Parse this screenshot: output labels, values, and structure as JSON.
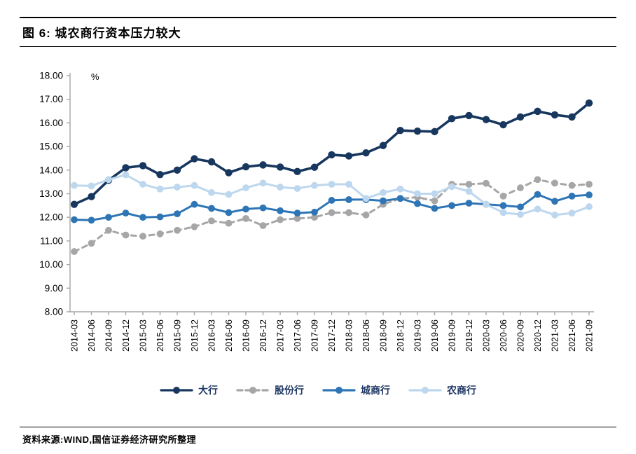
{
  "header": {
    "title": "图 6: 城农商行资本压力较大"
  },
  "footer": {
    "source": "资料来源:WIND,国信证券经济研究所整理"
  },
  "chart_data": {
    "type": "line",
    "title": "城农商行资本压力较大",
    "unit_label": "%",
    "xlabel": "",
    "ylabel": "%",
    "ylim": [
      8,
      18
    ],
    "ytick_step": 1.0,
    "ytick_format": "0.00",
    "grid": false,
    "legend_position": "bottom",
    "axis_color": "#a6a6a6",
    "tick_label_color": "#000000",
    "categories": [
      "2014-03",
      "2014-06",
      "2014-09",
      "2014-12",
      "2015-03",
      "2015-06",
      "2015-09",
      "2015-12",
      "2016-03",
      "2016-06",
      "2016-09",
      "2016-12",
      "2017-03",
      "2017-06",
      "2017-09",
      "2017-12",
      "2018-03",
      "2018-06",
      "2018-09",
      "2018-12",
      "2019-03",
      "2019-06",
      "2019-09",
      "2019-12",
      "2020-03",
      "2020-06",
      "2020-09",
      "2020-12",
      "2021-03",
      "2021-06",
      "2021-09"
    ],
    "series": [
      {
        "name": "大行",
        "color": "#17375e",
        "style": "solid",
        "values": [
          12.55,
          12.88,
          13.57,
          14.1,
          14.19,
          13.81,
          14.0,
          14.48,
          14.35,
          13.89,
          14.14,
          14.22,
          14.13,
          13.94,
          14.12,
          14.65,
          14.6,
          14.73,
          15.04,
          15.68,
          15.65,
          15.63,
          16.18,
          16.31,
          16.14,
          15.92,
          16.25,
          16.49,
          16.34,
          16.25,
          16.84
        ]
      },
      {
        "name": "股份行",
        "color": "#a6a6a6",
        "style": "dashed",
        "values": [
          10.55,
          10.9,
          11.45,
          11.25,
          11.2,
          11.3,
          11.45,
          11.6,
          11.85,
          11.75,
          11.95,
          11.65,
          11.9,
          11.95,
          12.0,
          12.2,
          12.2,
          12.1,
          12.55,
          12.8,
          12.85,
          12.7,
          13.4,
          13.4,
          13.44,
          12.9,
          13.25,
          13.6,
          13.45,
          13.35,
          13.4
        ]
      },
      {
        "name": "城商行",
        "color": "#2e75b6",
        "style": "solid",
        "values": [
          11.9,
          11.88,
          12.0,
          12.18,
          12.0,
          12.02,
          12.15,
          12.55,
          12.38,
          12.2,
          12.35,
          12.4,
          12.28,
          12.18,
          12.22,
          12.72,
          12.75,
          12.75,
          12.7,
          12.8,
          12.58,
          12.38,
          12.5,
          12.6,
          12.55,
          12.5,
          12.44,
          12.97,
          12.68,
          12.9,
          12.95
        ]
      },
      {
        "name": "农商行",
        "color": "#bdd7ee",
        "style": "solid",
        "values": [
          13.35,
          13.33,
          13.6,
          13.8,
          13.4,
          13.2,
          13.28,
          13.35,
          13.05,
          12.97,
          13.25,
          13.45,
          13.28,
          13.22,
          13.35,
          13.4,
          13.4,
          12.8,
          13.05,
          13.2,
          13.0,
          13.0,
          13.3,
          13.1,
          12.55,
          12.2,
          12.12,
          12.35,
          12.1,
          12.18,
          12.45
        ]
      }
    ]
  }
}
